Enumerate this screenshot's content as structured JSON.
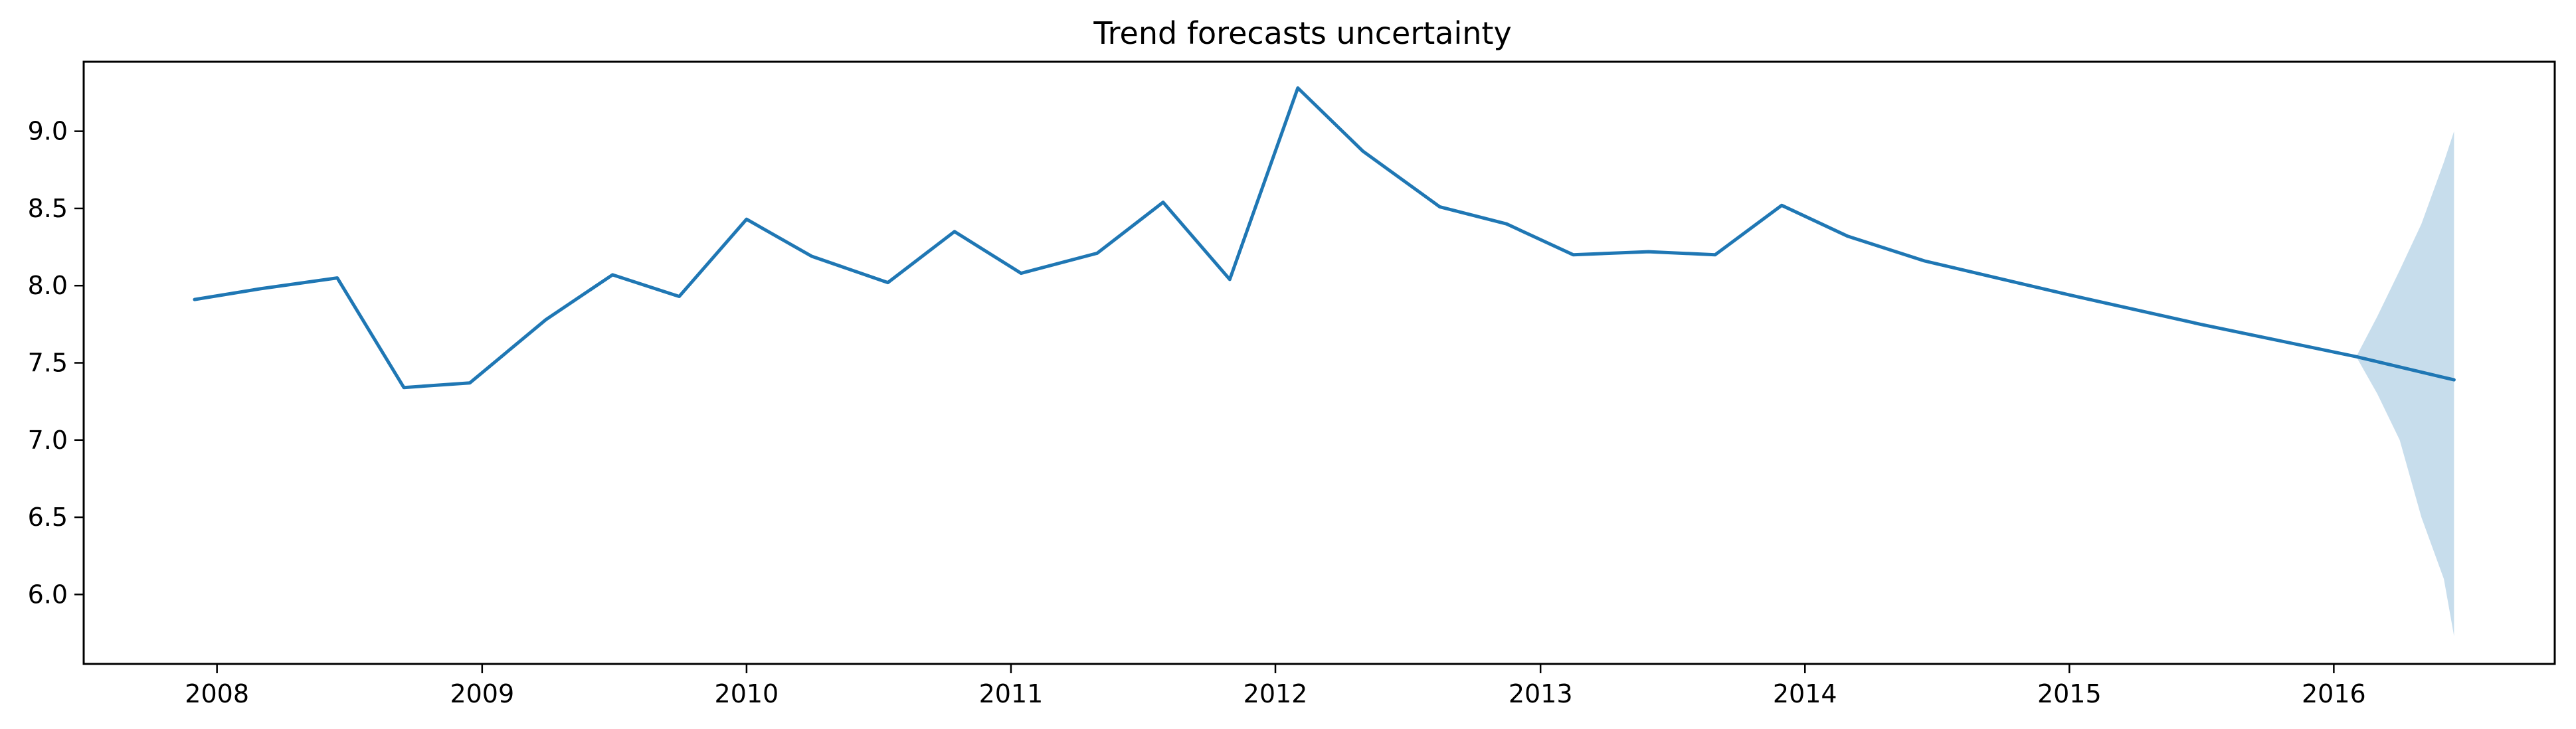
{
  "chart_data": {
    "type": "line",
    "title": "Trend forecasts uncertainty",
    "xlabel": "",
    "ylabel": "",
    "x_axis": "date",
    "xlim": [
      "2007-07-01",
      "2016-11-01"
    ],
    "ylim": [
      5.55,
      9.45
    ],
    "grid": false,
    "legend": "none",
    "x_tick_labels": [
      "2008",
      "2009",
      "2010",
      "2011",
      "2012",
      "2013",
      "2014",
      "2015",
      "2016"
    ],
    "y_tick_labels": [
      "6.0",
      "6.5",
      "7.0",
      "7.5",
      "8.0",
      "8.5",
      "9.0"
    ],
    "y_ticks": [
      6.0,
      6.5,
      7.0,
      7.5,
      8.0,
      8.5,
      9.0
    ],
    "colors": {
      "line": "#1f77b4",
      "band": "#1f77b4",
      "band_opacity": 0.25
    },
    "series": [
      {
        "x": [
          "2007-12-01",
          "2008-03-01",
          "2008-06-15",
          "2008-09-15",
          "2008-12-15",
          "2009-03-30",
          "2009-06-30",
          "2009-09-30",
          "2010-01-01",
          "2010-04-01",
          "2010-07-15",
          "2010-10-15",
          "2011-01-15",
          "2011-04-30",
          "2011-07-30",
          "2011-10-30",
          "2012-02-01",
          "2012-05-01",
          "2012-08-15",
          "2012-11-15",
          "2013-02-15",
          "2013-05-30",
          "2013-08-30",
          "2013-11-30",
          "2014-03-01",
          "2014-06-15",
          "2015-01-01",
          "2015-07-01",
          "2016-01-01",
          "2016-02-01",
          "2016-06-15"
        ],
        "y": [
          7.91,
          7.98,
          8.05,
          7.34,
          7.37,
          7.78,
          8.07,
          7.93,
          8.43,
          8.19,
          8.02,
          8.35,
          8.08,
          8.21,
          8.54,
          8.04,
          9.28,
          8.87,
          8.51,
          8.4,
          8.2,
          8.22,
          8.2,
          8.52,
          8.32,
          8.16,
          7.94,
          7.75,
          7.57,
          7.54,
          7.39
        ]
      }
    ],
    "uncertainty_band": {
      "x": [
        "2016-02-01",
        "2016-03-01",
        "2016-04-01",
        "2016-05-01",
        "2016-06-01",
        "2016-06-15"
      ],
      "lower": [
        7.54,
        7.3,
        7.0,
        6.5,
        6.1,
        5.73
      ],
      "upper": [
        7.54,
        7.8,
        8.1,
        8.4,
        8.8,
        9.0
      ]
    }
  }
}
